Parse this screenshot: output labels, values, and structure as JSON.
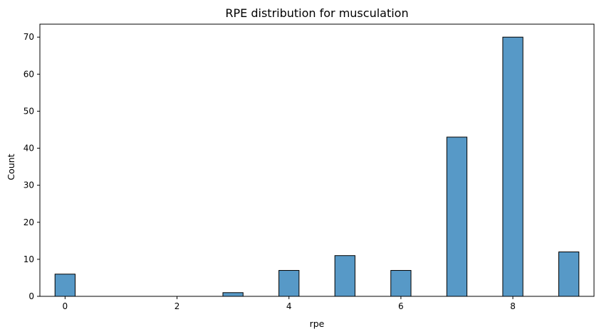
{
  "chart_data": {
    "type": "bar",
    "title": "RPE distribution for musculation",
    "xlabel": "rpe",
    "ylabel": "Count",
    "bar_color": "#5799c7",
    "edge_color": "#000000",
    "bin_width": 0.36,
    "xlim": [
      -0.45,
      9.45
    ],
    "ylim": [
      0,
      73.5
    ],
    "x_ticks": [
      0,
      2,
      4,
      6,
      8
    ],
    "y_ticks": [
      0,
      10,
      20,
      30,
      40,
      50,
      60,
      70
    ],
    "bins": [
      {
        "x": 0,
        "count": 6
      },
      {
        "x": 3,
        "count": 1
      },
      {
        "x": 4,
        "count": 7
      },
      {
        "x": 5,
        "count": 11
      },
      {
        "x": 6,
        "count": 7
      },
      {
        "x": 7,
        "count": 43
      },
      {
        "x": 8,
        "count": 70
      },
      {
        "x": 9,
        "count": 12
      }
    ]
  }
}
